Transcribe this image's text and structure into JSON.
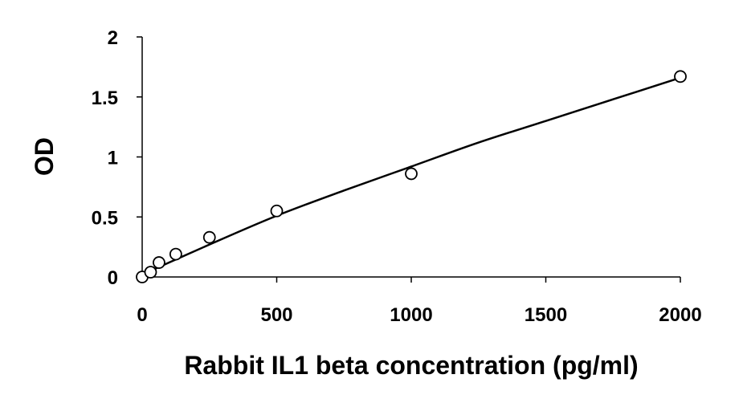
{
  "chart_data": {
    "type": "scatter",
    "title": "",
    "xlabel": "Rabbit IL1 beta concentration (pg/ml)",
    "ylabel": "OD",
    "xlim": [
      0,
      2000
    ],
    "ylim": [
      0,
      2
    ],
    "x_ticks": [
      0,
      500,
      1000,
      1500,
      2000
    ],
    "x_tick_labels": [
      "0",
      "500",
      "1000",
      "1500",
      "2000"
    ],
    "y_ticks": [
      0,
      0.5,
      1,
      1.5,
      2
    ],
    "y_tick_labels": [
      "0",
      "0.5",
      "1",
      "1.5",
      "2"
    ],
    "grid": false,
    "legend": "none",
    "colors": {
      "points": "#000000",
      "fill": "#ffffff",
      "line": "#000000"
    },
    "series": [
      {
        "x": [
          0,
          31.25,
          62.5,
          125,
          250,
          500,
          1000,
          2000
        ],
        "y": [
          0.0,
          0.04,
          0.12,
          0.19,
          0.33,
          0.55,
          0.86,
          1.67
        ]
      }
    ],
    "trendline": {
      "type": "smooth-curve",
      "x": [
        0,
        250,
        500,
        750,
        1000,
        1250,
        1500,
        1750,
        2000
      ],
      "y": [
        0.02,
        0.27,
        0.51,
        0.72,
        0.92,
        1.12,
        1.3,
        1.48,
        1.66
      ]
    }
  }
}
